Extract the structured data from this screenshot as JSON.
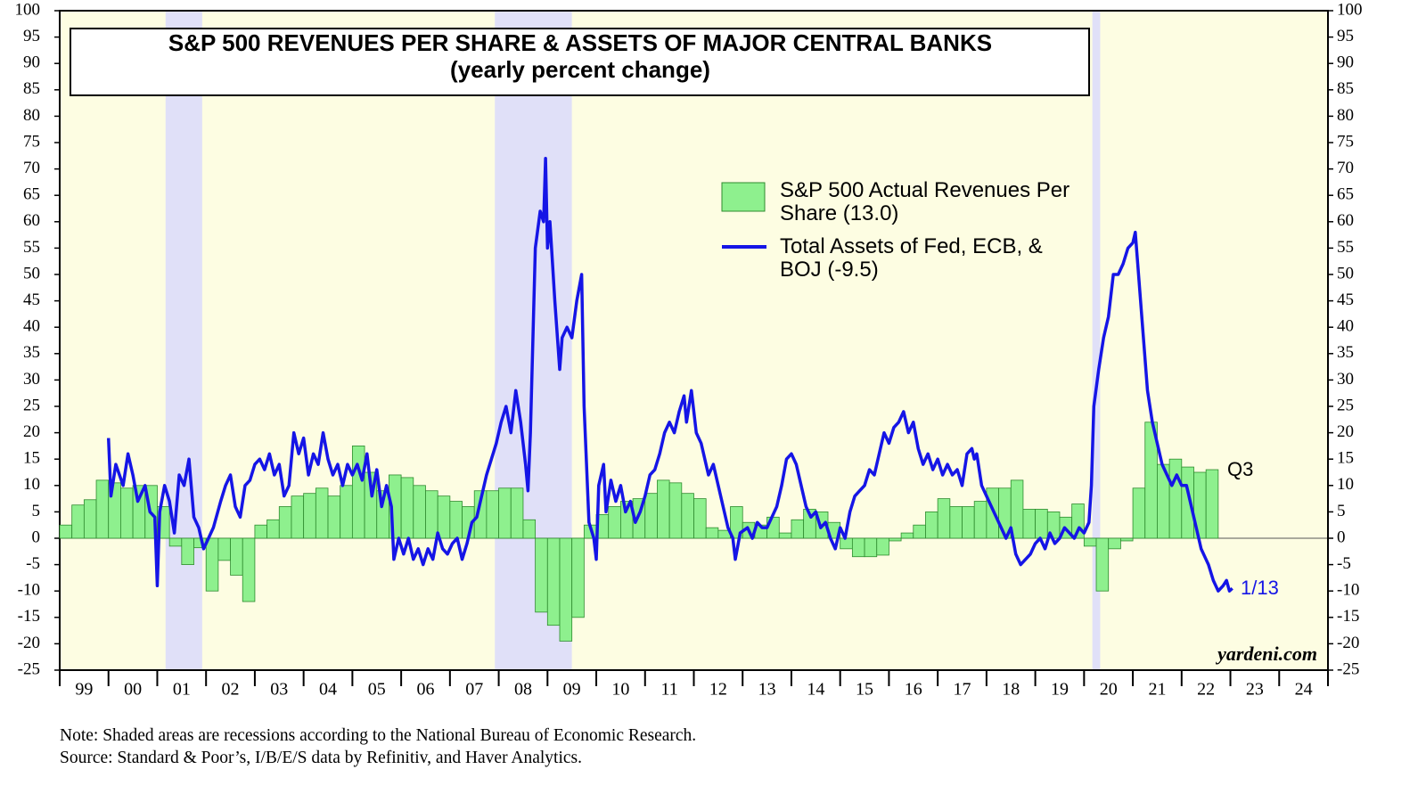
{
  "chart_data": {
    "type": "combo",
    "title": "S&P 500 REVENUES PER SHARE & ASSETS OF MAJOR CENTRAL BANKS",
    "subtitle": "(yearly percent change)",
    "xlim": [
      1999,
      2025
    ],
    "ylim": [
      -25,
      100
    ],
    "yticks": [
      -25,
      -20,
      -15,
      -10,
      -5,
      0,
      5,
      10,
      15,
      20,
      25,
      30,
      35,
      40,
      45,
      50,
      55,
      60,
      65,
      70,
      75,
      80,
      85,
      90,
      95,
      100
    ],
    "xticks": [
      {
        "value": 1999.5,
        "label": "99"
      },
      {
        "value": 2000.5,
        "label": "00"
      },
      {
        "value": 2001.5,
        "label": "01"
      },
      {
        "value": 2002.5,
        "label": "02"
      },
      {
        "value": 2003.5,
        "label": "03"
      },
      {
        "value": 2004.5,
        "label": "04"
      },
      {
        "value": 2005.5,
        "label": "05"
      },
      {
        "value": 2006.5,
        "label": "06"
      },
      {
        "value": 2007.5,
        "label": "07"
      },
      {
        "value": 2008.5,
        "label": "08"
      },
      {
        "value": 2009.5,
        "label": "09"
      },
      {
        "value": 2010.5,
        "label": "10"
      },
      {
        "value": 2011.5,
        "label": "11"
      },
      {
        "value": 2012.5,
        "label": "12"
      },
      {
        "value": 2013.5,
        "label": "13"
      },
      {
        "value": 2014.5,
        "label": "14"
      },
      {
        "value": 2015.5,
        "label": "15"
      },
      {
        "value": 2016.5,
        "label": "16"
      },
      {
        "value": 2017.5,
        "label": "17"
      },
      {
        "value": 2018.5,
        "label": "18"
      },
      {
        "value": 2019.5,
        "label": "19"
      },
      {
        "value": 2020.5,
        "label": "20"
      },
      {
        "value": 2021.5,
        "label": "21"
      },
      {
        "value": 2022.5,
        "label": "22"
      },
      {
        "value": 2023.5,
        "label": "23"
      },
      {
        "value": 2024.5,
        "label": "24"
      }
    ],
    "recessions": [
      [
        2001.17,
        2001.92
      ],
      [
        2007.92,
        2009.5
      ],
      [
        2020.17,
        2020.33
      ]
    ],
    "background_color": "#fdfde2",
    "recession_color": "#e0e0f8",
    "series": [
      {
        "name": "S&P 500 Actual Revenues Per Share (13.0)",
        "type": "bar",
        "color": "#8ef08e",
        "edge_color": "#2e8b2e",
        "x": [
          1999.125,
          1999.375,
          1999.625,
          1999.875,
          2000.125,
          2000.375,
          2000.625,
          2000.875,
          2001.125,
          2001.375,
          2001.625,
          2001.875,
          2002.125,
          2002.375,
          2002.625,
          2002.875,
          2003.125,
          2003.375,
          2003.625,
          2003.875,
          2004.125,
          2004.375,
          2004.625,
          2004.875,
          2005.125,
          2005.375,
          2005.625,
          2005.875,
          2006.125,
          2006.375,
          2006.625,
          2006.875,
          2007.125,
          2007.375,
          2007.625,
          2007.875,
          2008.125,
          2008.375,
          2008.625,
          2008.875,
          2009.125,
          2009.375,
          2009.625,
          2009.875,
          2010.125,
          2010.375,
          2010.625,
          2010.875,
          2011.125,
          2011.375,
          2011.625,
          2011.875,
          2012.125,
          2012.375,
          2012.625,
          2012.875,
          2013.125,
          2013.375,
          2013.625,
          2013.875,
          2014.125,
          2014.375,
          2014.625,
          2014.875,
          2015.125,
          2015.375,
          2015.625,
          2015.875,
          2016.125,
          2016.375,
          2016.625,
          2016.875,
          2017.125,
          2017.375,
          2017.625,
          2017.875,
          2018.125,
          2018.375,
          2018.625,
          2018.875,
          2019.125,
          2019.375,
          2019.625,
          2019.875,
          2020.125,
          2020.375,
          2020.625,
          2020.875,
          2021.125,
          2021.375,
          2021.625,
          2021.875,
          2022.125,
          2022.375,
          2022.625
        ],
        "values": [
          2.5,
          6.3,
          7.3,
          11,
          10.5,
          9.5,
          10,
          10,
          6,
          -1.5,
          -5,
          -1.8,
          -10,
          -4.2,
          -7,
          -12,
          2.5,
          3.5,
          6,
          8,
          8.5,
          9.5,
          8,
          10,
          17.5,
          12.5,
          9,
          12,
          11.5,
          10,
          9,
          8,
          7,
          6,
          9,
          9,
          9.5,
          9.5,
          3.5,
          -14,
          -16.5,
          -19.5,
          -15,
          2.5,
          4.5,
          6,
          7,
          7.5,
          8.5,
          11,
          10.5,
          8.5,
          7.5,
          2,
          1.5,
          6,
          3,
          2.5,
          4,
          1,
          3.5,
          5.5,
          5,
          3,
          -2,
          -3.5,
          -3.5,
          -3.2,
          -0.5,
          1,
          2.5,
          5,
          7.5,
          6,
          6,
          7,
          9.5,
          9.5,
          11,
          5.5,
          5.5,
          5,
          4,
          6.5,
          -1.5,
          -10,
          -2,
          -0.5,
          9.5,
          22,
          14,
          15,
          13.5,
          12.5,
          13
        ]
      },
      {
        "name": "Total Assets of Fed, ECB, & BOJ (-9.5)",
        "type": "line",
        "color": "#1515e6",
        "x": [
          2000.0,
          2000.05,
          2000.15,
          2000.3,
          2000.4,
          2000.5,
          2000.6,
          2000.75,
          2000.85,
          2000.95,
          2001.0,
          2001.05,
          2001.15,
          2001.25,
          2001.35,
          2001.45,
          2001.55,
          2001.65,
          2001.75,
          2001.85,
          2001.95,
          2002.05,
          2002.15,
          2002.3,
          2002.4,
          2002.5,
          2002.6,
          2002.7,
          2002.8,
          2002.9,
          2003.0,
          2003.1,
          2003.2,
          2003.3,
          2003.4,
          2003.5,
          2003.6,
          2003.7,
          2003.8,
          2003.9,
          2004.0,
          2004.1,
          2004.2,
          2004.3,
          2004.4,
          2004.5,
          2004.6,
          2004.7,
          2004.8,
          2004.9,
          2005.0,
          2005.1,
          2005.2,
          2005.3,
          2005.4,
          2005.5,
          2005.6,
          2005.7,
          2005.8,
          2005.85,
          2005.95,
          2006.05,
          2006.15,
          2006.25,
          2006.35,
          2006.45,
          2006.55,
          2006.65,
          2006.75,
          2006.85,
          2006.95,
          2007.05,
          2007.15,
          2007.25,
          2007.35,
          2007.45,
          2007.55,
          2007.65,
          2007.75,
          2007.85,
          2007.95,
          2008.05,
          2008.15,
          2008.25,
          2008.35,
          2008.45,
          2008.55,
          2008.6,
          2008.65,
          2008.75,
          2008.85,
          2008.92,
          2008.96,
          2009.0,
          2009.05,
          2009.15,
          2009.25,
          2009.3,
          2009.4,
          2009.5,
          2009.6,
          2009.7,
          2009.75,
          2009.85,
          2009.95,
          2010.0,
          2010.05,
          2010.15,
          2010.2,
          2010.3,
          2010.4,
          2010.5,
          2010.6,
          2010.7,
          2010.8,
          2010.9,
          2011.0,
          2011.1,
          2011.2,
          2011.3,
          2011.4,
          2011.5,
          2011.6,
          2011.7,
          2011.8,
          2011.85,
          2011.95,
          2012.05,
          2012.15,
          2012.3,
          2012.4,
          2012.5,
          2012.6,
          2012.7,
          2012.8,
          2012.85,
          2012.95,
          2013.1,
          2013.2,
          2013.3,
          2013.4,
          2013.5,
          2013.6,
          2013.7,
          2013.8,
          2013.9,
          2014.0,
          2014.1,
          2014.2,
          2014.3,
          2014.4,
          2014.5,
          2014.6,
          2014.7,
          2014.8,
          2014.9,
          2015.0,
          2015.1,
          2015.2,
          2015.3,
          2015.4,
          2015.5,
          2015.6,
          2015.7,
          2015.8,
          2015.9,
          2016.0,
          2016.1,
          2016.2,
          2016.3,
          2016.4,
          2016.5,
          2016.6,
          2016.7,
          2016.8,
          2016.9,
          2017.0,
          2017.1,
          2017.2,
          2017.3,
          2017.4,
          2017.5,
          2017.6,
          2017.7,
          2017.75,
          2017.8,
          2017.9,
          2018.0,
          2018.1,
          2018.2,
          2018.3,
          2018.4,
          2018.5,
          2018.6,
          2018.7,
          2018.8,
          2018.9,
          2019.0,
          2019.1,
          2019.2,
          2019.3,
          2019.4,
          2019.5,
          2019.6,
          2019.7,
          2019.8,
          2019.9,
          2020.0,
          2020.1,
          2020.15,
          2020.2,
          2020.3,
          2020.4,
          2020.5,
          2020.6,
          2020.7,
          2020.8,
          2020.9,
          2021.0,
          2021.05,
          2021.1,
          2021.2,
          2021.3,
          2021.4,
          2021.5,
          2021.6,
          2021.7,
          2021.8,
          2021.9,
          2022.0,
          2022.1,
          2022.2,
          2022.3,
          2022.4,
          2022.5,
          2022.55,
          2022.65,
          2022.75,
          2022.85,
          2022.92,
          2022.98,
          2023.04
        ],
        "values": [
          19,
          8,
          14,
          10,
          16,
          12,
          7,
          10,
          5,
          4,
          -9,
          5,
          10,
          7,
          1,
          12,
          10,
          15,
          4,
          2,
          -2,
          0,
          2,
          7,
          10,
          12,
          6,
          4,
          10,
          11,
          14,
          15,
          13,
          16,
          12,
          14,
          8,
          10,
          20,
          16,
          19,
          12,
          16,
          14,
          20,
          15,
          12,
          14,
          10,
          14,
          12,
          14,
          11,
          16,
          8,
          13,
          6,
          10,
          6,
          -4,
          0,
          -3,
          0,
          -4,
          -2,
          -5,
          -2,
          -4,
          1,
          -2,
          -3,
          -1,
          0,
          -4,
          -1,
          3,
          4,
          8,
          12,
          15,
          18,
          22,
          25,
          20,
          28,
          22,
          14,
          9,
          20,
          55,
          62,
          60,
          72,
          55,
          60,
          45,
          32,
          38,
          40,
          38,
          45,
          50,
          25,
          3,
          0,
          -4,
          10,
          14,
          5,
          11,
          7,
          10,
          5,
          7,
          3,
          5,
          8,
          12,
          13,
          16,
          20,
          22,
          20,
          24,
          27,
          22,
          28,
          20,
          18,
          12,
          14,
          10,
          6,
          2,
          0,
          -4,
          1,
          2,
          0,
          3,
          2,
          2,
          4,
          6,
          10,
          15,
          16,
          14,
          10,
          6,
          4,
          5,
          2,
          3,
          0,
          -2,
          2,
          0,
          5,
          8,
          9,
          10,
          13,
          12,
          16,
          20,
          18,
          21,
          22,
          24,
          20,
          22,
          17,
          14,
          16,
          13,
          15,
          12,
          14,
          12,
          13,
          10,
          16,
          17,
          15,
          16,
          10,
          8,
          6,
          4,
          2,
          0,
          2,
          -3,
          -5,
          -4,
          -3,
          -1,
          0,
          -2,
          1,
          -1,
          0,
          2,
          1,
          0,
          2,
          1,
          3,
          10,
          25,
          32,
          38,
          42,
          50,
          50,
          52,
          55,
          56,
          58,
          52,
          40,
          28,
          22,
          18,
          14,
          12,
          10,
          12,
          10,
          10,
          6,
          2,
          -2,
          -4,
          -5,
          -8,
          -10,
          -9,
          -8,
          -10,
          -9.5
        ]
      }
    ],
    "annotations": {
      "last_bar": "Q3",
      "last_line": "1/13",
      "source_site": "yardeni.com"
    },
    "notes": [
      "Note: Shaded areas are recessions according to the National Bureau of Economic Research.",
      "Source: Standard & Poor’s, I/B/E/S data by Refinitiv, and Haver Analytics."
    ]
  }
}
